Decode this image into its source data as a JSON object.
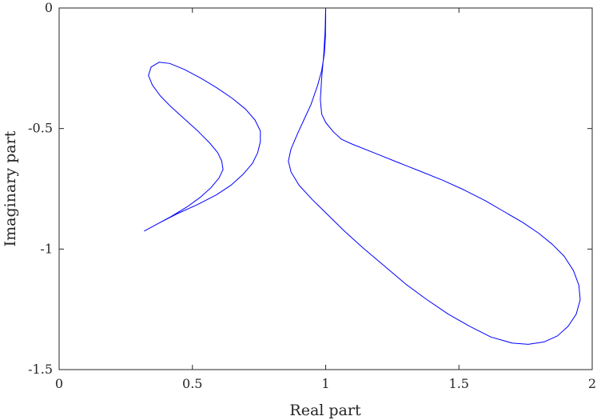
{
  "chart_data": {
    "type": "line",
    "title": "",
    "xlabel": "Real part",
    "ylabel": "Imaginary part",
    "xlim": [
      0,
      2
    ],
    "ylim": [
      -1.5,
      0
    ],
    "x_ticks": [
      0,
      0.5,
      1,
      1.5,
      2
    ],
    "x_tick_labels": [
      "0",
      "0.5",
      "1",
      "1.5",
      "2"
    ],
    "y_ticks": [
      0,
      -0.5,
      -1,
      -1.5
    ],
    "y_tick_labels": [
      "0",
      "-0.5",
      "-1",
      "-1.5"
    ],
    "grid": false,
    "line_color": "#0000ff",
    "series": [
      {
        "points": [
          [
            0.32,
            -0.925
          ],
          [
            0.37,
            -0.895
          ],
          [
            0.42,
            -0.865
          ],
          [
            0.48,
            -0.825
          ],
          [
            0.53,
            -0.785
          ],
          [
            0.57,
            -0.745
          ],
          [
            0.6,
            -0.705
          ],
          [
            0.615,
            -0.67
          ],
          [
            0.61,
            -0.635
          ],
          [
            0.595,
            -0.6
          ],
          [
            0.565,
            -0.56
          ],
          [
            0.52,
            -0.51
          ],
          [
            0.47,
            -0.46
          ],
          [
            0.42,
            -0.41
          ],
          [
            0.38,
            -0.365
          ],
          [
            0.35,
            -0.32
          ],
          [
            0.335,
            -0.28
          ],
          [
            0.345,
            -0.245
          ],
          [
            0.375,
            -0.225
          ],
          [
            0.415,
            -0.23
          ],
          [
            0.47,
            -0.255
          ],
          [
            0.53,
            -0.29
          ],
          [
            0.59,
            -0.33
          ],
          [
            0.65,
            -0.375
          ],
          [
            0.7,
            -0.42
          ],
          [
            0.735,
            -0.465
          ],
          [
            0.755,
            -0.51
          ],
          [
            0.755,
            -0.555
          ],
          [
            0.745,
            -0.6
          ],
          [
            0.725,
            -0.645
          ],
          [
            0.69,
            -0.69
          ],
          [
            0.645,
            -0.735
          ],
          [
            0.59,
            -0.775
          ],
          [
            0.52,
            -0.815
          ],
          [
            0.44,
            -0.855
          ],
          [
            0.37,
            -0.895
          ],
          [
            0.32,
            -0.925
          ]
        ]
      },
      {
        "points": [
          [
            1.0,
            0.0
          ],
          [
            1.0,
            -0.05
          ],
          [
            0.999,
            -0.12
          ],
          [
            0.995,
            -0.19
          ],
          [
            0.985,
            -0.26
          ],
          [
            0.97,
            -0.32
          ],
          [
            0.945,
            -0.4
          ],
          [
            0.92,
            -0.46
          ],
          [
            0.895,
            -0.52
          ],
          [
            0.87,
            -0.585
          ],
          [
            0.86,
            -0.635
          ],
          [
            0.87,
            -0.68
          ],
          [
            0.9,
            -0.735
          ],
          [
            0.95,
            -0.795
          ],
          [
            1.01,
            -0.86
          ],
          [
            1.07,
            -0.925
          ],
          [
            1.14,
            -0.995
          ],
          [
            1.22,
            -1.07
          ],
          [
            1.3,
            -1.145
          ],
          [
            1.38,
            -1.21
          ],
          [
            1.46,
            -1.27
          ],
          [
            1.54,
            -1.32
          ],
          [
            1.62,
            -1.365
          ],
          [
            1.7,
            -1.39
          ],
          [
            1.76,
            -1.395
          ],
          [
            1.82,
            -1.385
          ],
          [
            1.87,
            -1.36
          ],
          [
            1.91,
            -1.32
          ],
          [
            1.94,
            -1.27
          ],
          [
            1.955,
            -1.21
          ],
          [
            1.95,
            -1.15
          ],
          [
            1.93,
            -1.09
          ],
          [
            1.895,
            -1.03
          ],
          [
            1.85,
            -0.98
          ],
          [
            1.8,
            -0.935
          ],
          [
            1.74,
            -0.89
          ],
          [
            1.67,
            -0.845
          ],
          [
            1.6,
            -0.8
          ],
          [
            1.52,
            -0.755
          ],
          [
            1.44,
            -0.715
          ],
          [
            1.35,
            -0.675
          ],
          [
            1.27,
            -0.64
          ],
          [
            1.18,
            -0.6
          ],
          [
            1.1,
            -0.565
          ],
          [
            1.06,
            -0.545
          ],
          [
            1.03,
            -0.515
          ],
          [
            1.0,
            -0.475
          ],
          [
            0.985,
            -0.44
          ],
          [
            0.98,
            -0.38
          ],
          [
            0.985,
            -0.29
          ],
          [
            0.993,
            -0.19
          ],
          [
            0.998,
            -0.09
          ],
          [
            1.0,
            0.0
          ]
        ]
      }
    ]
  }
}
